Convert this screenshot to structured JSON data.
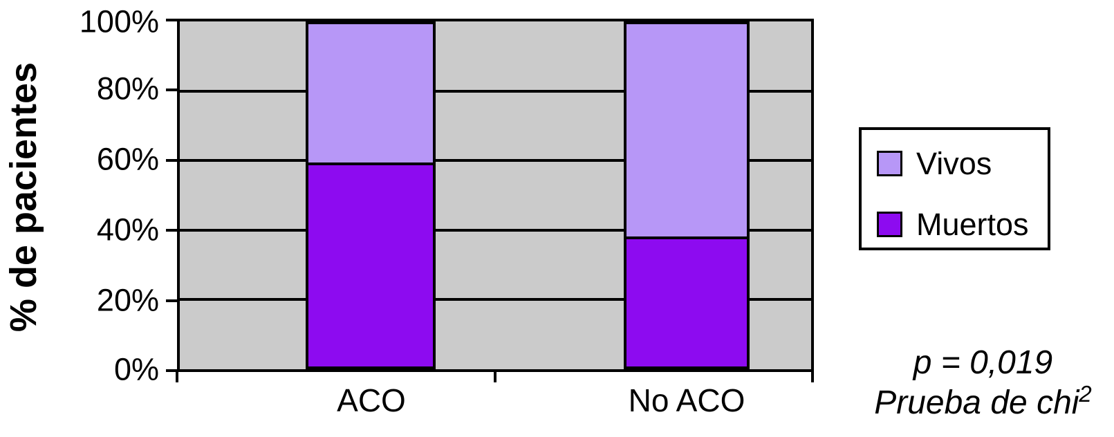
{
  "chart_data": {
    "type": "bar",
    "subtype": "stacked-100-percent-column",
    "categories": [
      "ACO",
      "No ACO"
    ],
    "series": [
      {
        "name": "Vivos",
        "color": "#b797f7",
        "values": [
          40.5,
          62
        ]
      },
      {
        "name": "Muertos",
        "color": "#8d0bf0",
        "values": [
          59.5,
          38
        ]
      }
    ],
    "title": "",
    "xlabel": "",
    "ylabel": "% de pacientes",
    "ylim": [
      0,
      100
    ],
    "ytick_labels": {
      "t100": "100%",
      "t80": "80%",
      "t60": "60%",
      "t40": "40%",
      "t20": "20%",
      "t0": "0%"
    },
    "grid": true,
    "plot_background": "#cbcbcb",
    "axis_color": "#000000",
    "legend": {
      "position": "right",
      "entries": [
        {
          "label": "Vivos",
          "color": "#b797f7"
        },
        {
          "label": "Muertos",
          "color": "#8d0bf0"
        }
      ]
    },
    "annotation": {
      "line1": "p = 0,019",
      "line2_base": "Prueba de chi",
      "line2_sup": "2"
    }
  }
}
